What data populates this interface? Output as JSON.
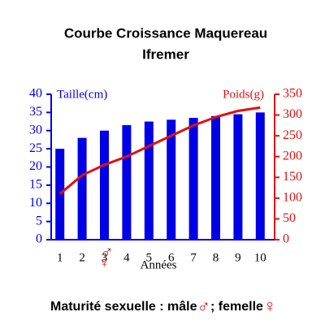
{
  "chart_data": {
    "type": "bar_line",
    "title": "Courbe Croissance Maquereau",
    "subtitle": "Ifremer",
    "ylabel": "Taille(cm)",
    "y2label": "Poids(g)",
    "xlabel": "Années",
    "categories": [
      1,
      2,
      3,
      4,
      5,
      6,
      7,
      8,
      9,
      10
    ],
    "series": [
      {
        "name": "Taille(cm)",
        "type": "bar",
        "color": "#0000e6",
        "values": [
          25,
          28,
          30,
          31.5,
          32.5,
          33,
          33.5,
          34,
          34.5,
          35
        ]
      },
      {
        "name": "Poids(g)",
        "type": "line",
        "axis": "y2",
        "color": "#e01010",
        "values": [
          110,
          155,
          180,
          200,
          225,
          250,
          275,
          295,
          310,
          318
        ]
      }
    ],
    "ylim": [
      0,
      40
    ],
    "yticks": [
      0,
      5,
      10,
      15,
      20,
      25,
      30,
      35,
      40
    ],
    "y2lim": [
      0,
      350
    ],
    "y2ticks": [
      0,
      50,
      100,
      150,
      200,
      250,
      300,
      350
    ],
    "footer": {
      "text": "Maturité sexuelle : mâle",
      "male": "♂",
      "sep": "; femelle",
      "female": "♀"
    },
    "maturity_year_index": 2
  }
}
